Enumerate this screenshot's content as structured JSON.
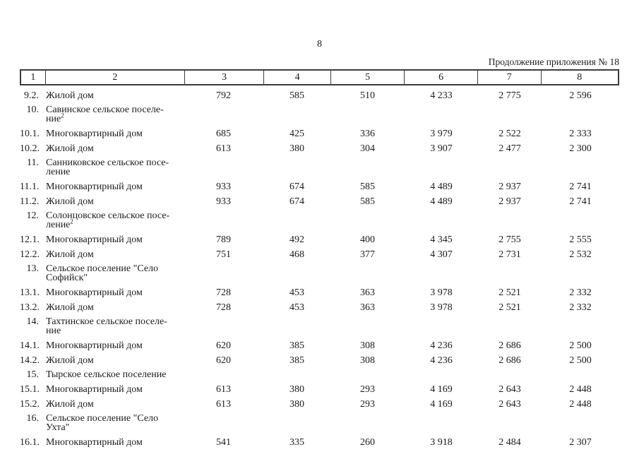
{
  "page": {
    "number": "8",
    "continuation": "Продолжение приложения № 18"
  },
  "table": {
    "header": [
      "1",
      "2",
      "3",
      "4",
      "5",
      "6",
      "7",
      "8"
    ],
    "rows": [
      {
        "type": "data",
        "num": "9.2.",
        "line1": "Жилой дом",
        "line2": "",
        "sup": "",
        "c3": "792",
        "c4": "585",
        "c5": "510",
        "c6": "4 233",
        "c7": "2 775",
        "c8": "2 596"
      },
      {
        "type": "section",
        "num": "10.",
        "line1": "Савинское сельское поселе-",
        "line2": "ние",
        "sup": "2",
        "c3": "",
        "c4": "",
        "c5": "",
        "c6": "",
        "c7": "",
        "c8": ""
      },
      {
        "type": "data",
        "num": "10.1.",
        "line1": "Многоквартирный дом",
        "line2": "",
        "sup": "",
        "c3": "685",
        "c4": "425",
        "c5": "336",
        "c6": "3 979",
        "c7": "2 522",
        "c8": "2 333"
      },
      {
        "type": "data",
        "num": "10.2.",
        "line1": "Жилой дом",
        "line2": "",
        "sup": "",
        "c3": "613",
        "c4": "380",
        "c5": "304",
        "c6": "3 907",
        "c7": "2 477",
        "c8": "2 300"
      },
      {
        "type": "section",
        "num": "11.",
        "line1": "Санниковское сельское посе-",
        "line2": "ление",
        "sup": "",
        "c3": "",
        "c4": "",
        "c5": "",
        "c6": "",
        "c7": "",
        "c8": ""
      },
      {
        "type": "data",
        "num": "11.1.",
        "line1": "Многоквартирный дом",
        "line2": "",
        "sup": "",
        "c3": "933",
        "c4": "674",
        "c5": "585",
        "c6": "4 489",
        "c7": "2 937",
        "c8": "2 741"
      },
      {
        "type": "data",
        "num": "11.2.",
        "line1": "Жилой дом",
        "line2": "",
        "sup": "",
        "c3": "933",
        "c4": "674",
        "c5": "585",
        "c6": "4 489",
        "c7": "2 937",
        "c8": "2 741"
      },
      {
        "type": "section",
        "num": "12.",
        "line1": "Солонцовское сельское посе-",
        "line2": "ление",
        "sup": "2",
        "c3": "",
        "c4": "",
        "c5": "",
        "c6": "",
        "c7": "",
        "c8": ""
      },
      {
        "type": "data",
        "num": "12.1.",
        "line1": "Многоквартирный дом",
        "line2": "",
        "sup": "",
        "c3": "789",
        "c4": "492",
        "c5": "400",
        "c6": "4 345",
        "c7": "2 755",
        "c8": "2 555"
      },
      {
        "type": "data",
        "num": "12.2.",
        "line1": "Жилой дом",
        "line2": "",
        "sup": "",
        "c3": "751",
        "c4": "468",
        "c5": "377",
        "c6": "4 307",
        "c7": "2 731",
        "c8": "2 532"
      },
      {
        "type": "section",
        "num": "13.",
        "line1": "Сельское поселение \"Село",
        "line2": "Софийск\"",
        "sup": "",
        "c3": "",
        "c4": "",
        "c5": "",
        "c6": "",
        "c7": "",
        "c8": ""
      },
      {
        "type": "data",
        "num": "13.1.",
        "line1": "Многоквартирный дом",
        "line2": "",
        "sup": "",
        "c3": "728",
        "c4": "453",
        "c5": "363",
        "c6": "3 978",
        "c7": "2 521",
        "c8": "2 332"
      },
      {
        "type": "data",
        "num": "13.2.",
        "line1": "Жилой дом",
        "line2": "",
        "sup": "",
        "c3": "728",
        "c4": "453",
        "c5": "363",
        "c6": "3 978",
        "c7": "2 521",
        "c8": "2 332"
      },
      {
        "type": "section",
        "num": "14.",
        "line1": "Тахтинское сельское поселе-",
        "line2": "ние",
        "sup": "",
        "c3": "",
        "c4": "",
        "c5": "",
        "c6": "",
        "c7": "",
        "c8": ""
      },
      {
        "type": "data",
        "num": "14.1.",
        "line1": "Многоквартирный дом",
        "line2": "",
        "sup": "",
        "c3": "620",
        "c4": "385",
        "c5": "308",
        "c6": "4 236",
        "c7": "2 686",
        "c8": "2 500"
      },
      {
        "type": "data",
        "num": "14.2.",
        "line1": "Жилой дом",
        "line2": "",
        "sup": "",
        "c3": "620",
        "c4": "385",
        "c5": "308",
        "c6": "4 236",
        "c7": "2 686",
        "c8": "2 500"
      },
      {
        "type": "section",
        "num": "15.",
        "line1": "Тырское сельское поселение",
        "line2": "",
        "sup": "",
        "c3": "",
        "c4": "",
        "c5": "",
        "c6": "",
        "c7": "",
        "c8": ""
      },
      {
        "type": "data",
        "num": "15.1.",
        "line1": "Многоквартирный дом",
        "line2": "",
        "sup": "",
        "c3": "613",
        "c4": "380",
        "c5": "293",
        "c6": "4 169",
        "c7": "2 643",
        "c8": "2 448"
      },
      {
        "type": "data",
        "num": "15.2.",
        "line1": "Жилой дом",
        "line2": "",
        "sup": "",
        "c3": "613",
        "c4": "380",
        "c5": "293",
        "c6": "4 169",
        "c7": "2 643",
        "c8": "2 448"
      },
      {
        "type": "section",
        "num": "16.",
        "line1": "Сельское поселение \"Село",
        "line2": "Ухта\"",
        "sup": "",
        "c3": "",
        "c4": "",
        "c5": "",
        "c6": "",
        "c7": "",
        "c8": ""
      },
      {
        "type": "data",
        "num": "16.1.",
        "line1": "Многоквартирный дом",
        "line2": "",
        "sup": "",
        "c3": "541",
        "c4": "335",
        "c5": "260",
        "c6": "3 918",
        "c7": "2 484",
        "c8": "2 307"
      }
    ]
  }
}
